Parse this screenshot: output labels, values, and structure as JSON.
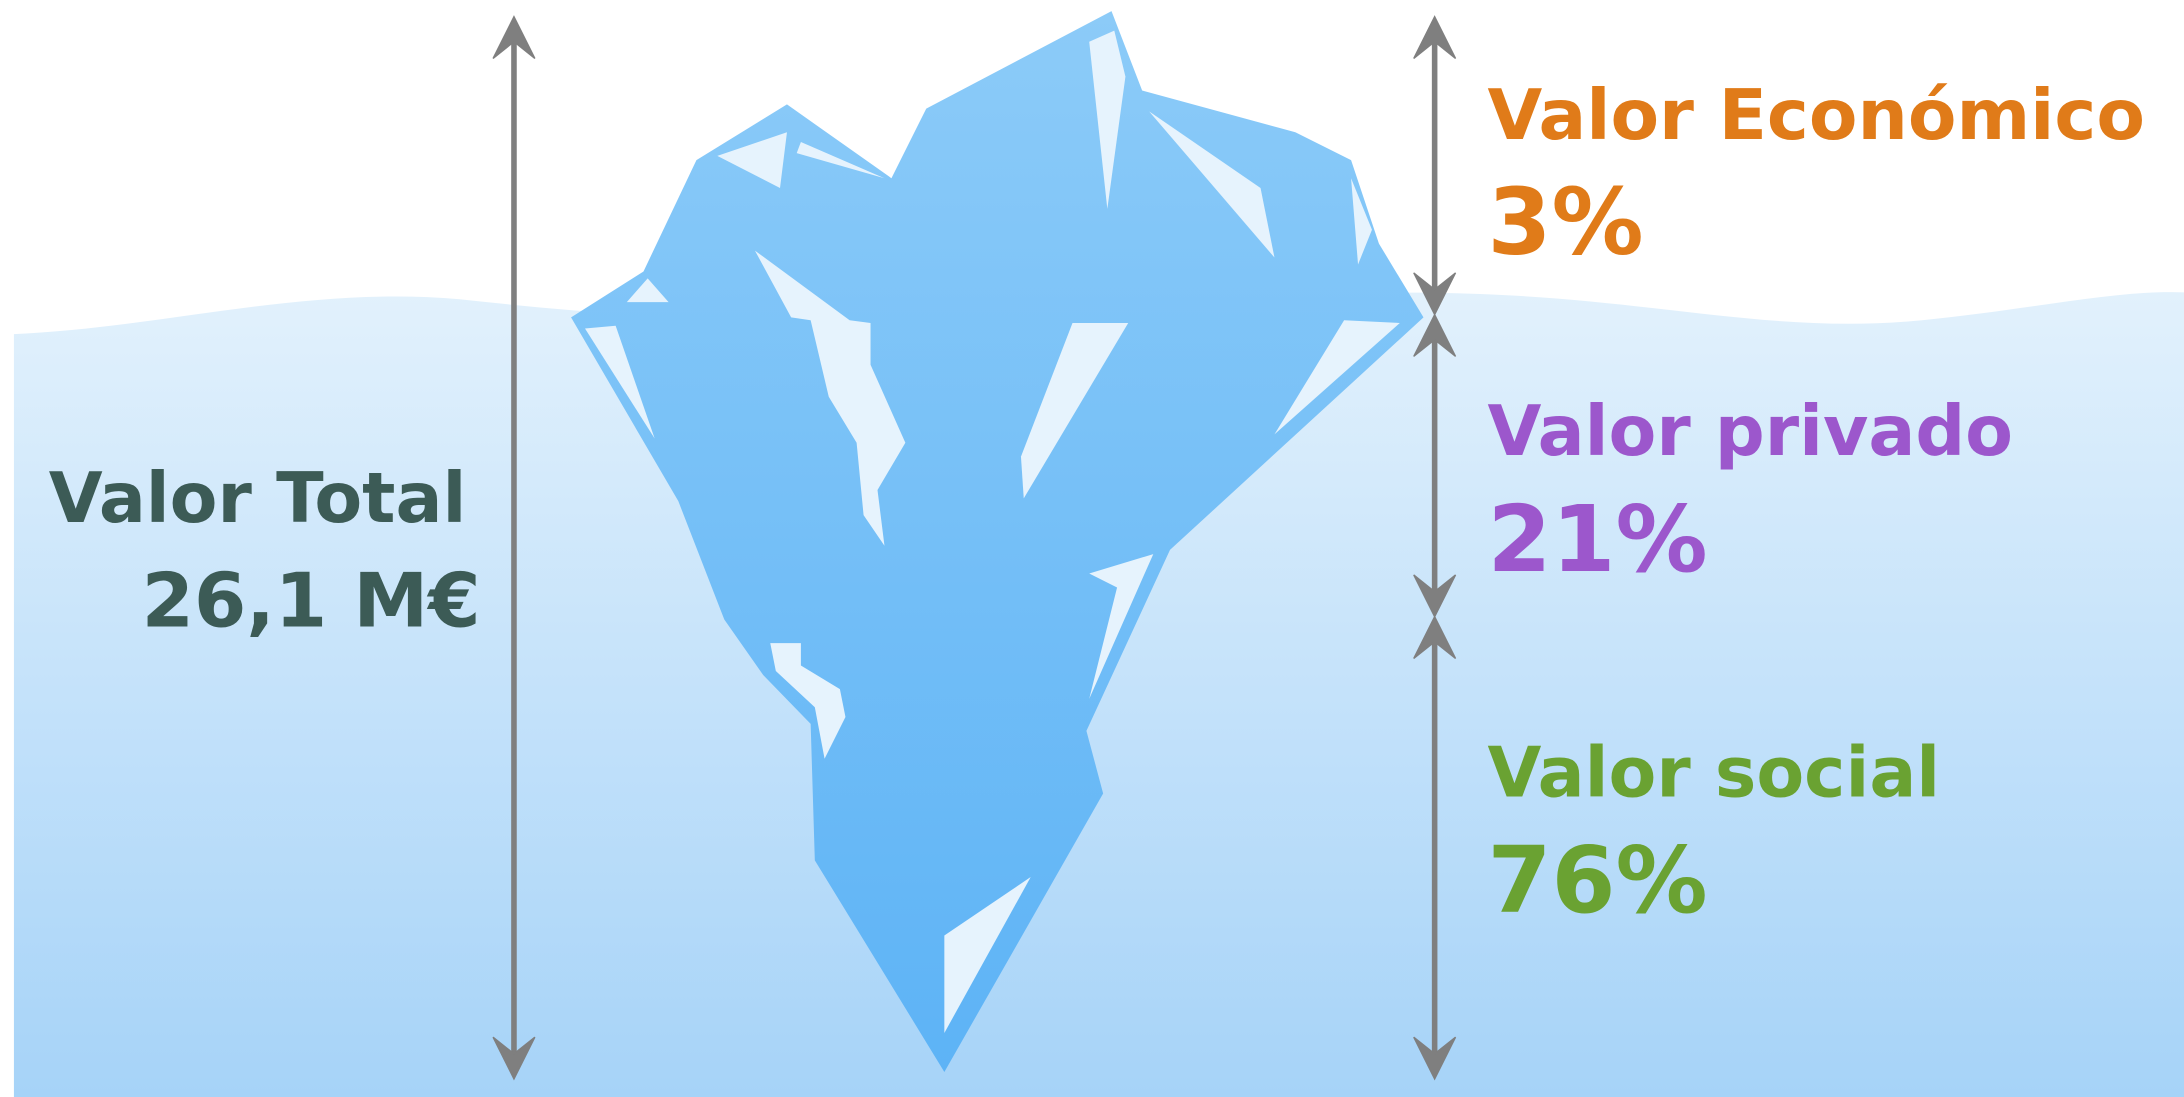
{
  "total": {
    "label": "Valor Total",
    "value": "26,1 M€"
  },
  "segments": [
    {
      "label": "Valor Económico",
      "value": "3%"
    },
    {
      "label": "Valor privado",
      "value": "21%"
    },
    {
      "label": "Valor social",
      "value": "76%"
    }
  ]
}
